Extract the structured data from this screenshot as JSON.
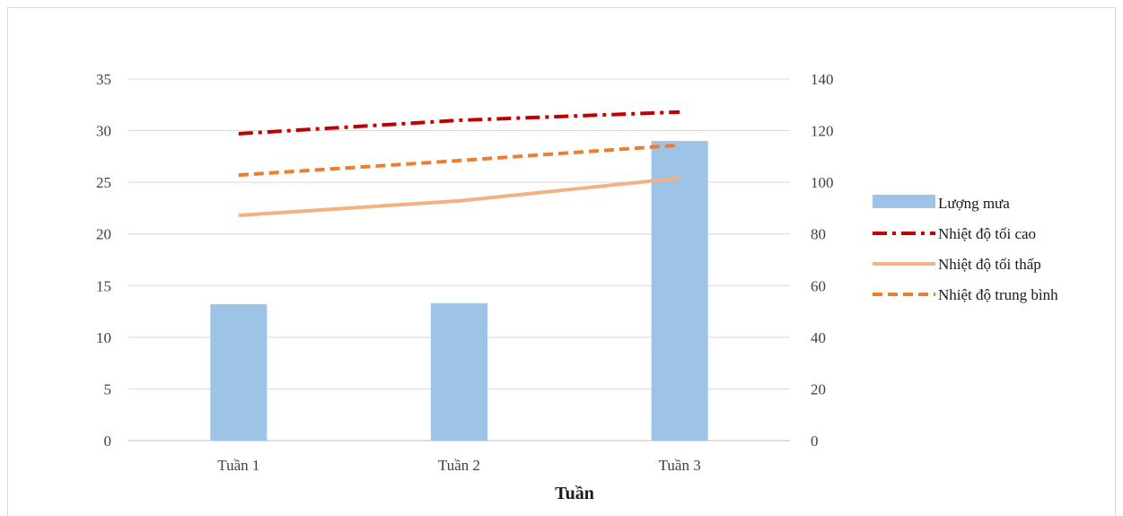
{
  "chart_data": {
    "type": "bar+line",
    "title": "",
    "xlabel": "Tuần",
    "categories": [
      "Tuần 1",
      "Tuần 2",
      "Tuần 3"
    ],
    "y_left": {
      "lim": [
        0,
        35
      ],
      "ticks": [
        0,
        5,
        10,
        15,
        20,
        25,
        30,
        35
      ]
    },
    "y_right": {
      "lim": [
        0,
        140
      ],
      "ticks": [
        0,
        20,
        40,
        60,
        80,
        100,
        120,
        140
      ]
    },
    "grid": true,
    "legend_position": "right",
    "series": [
      {
        "name": "Lượng mưa",
        "kind": "bar",
        "axis": "right",
        "color": "#9dc3e6",
        "values": [
          52.8,
          53.2,
          116
        ]
      },
      {
        "name": "Nhiệt độ tối cao",
        "kind": "line",
        "axis": "left",
        "color": "#c00000",
        "dash": "dash-dot",
        "values": [
          29.7,
          31.0,
          31.8
        ]
      },
      {
        "name": "Nhiệt độ tối thấp",
        "kind": "line",
        "axis": "left",
        "color": "#f4b183",
        "dash": "solid",
        "values": [
          21.8,
          23.2,
          25.4
        ]
      },
      {
        "name": "Nhiệt độ trung bình",
        "kind": "line",
        "axis": "left",
        "color": "#ed7d31",
        "dash": "dash",
        "values": [
          25.7,
          27.1,
          28.6
        ]
      }
    ]
  }
}
